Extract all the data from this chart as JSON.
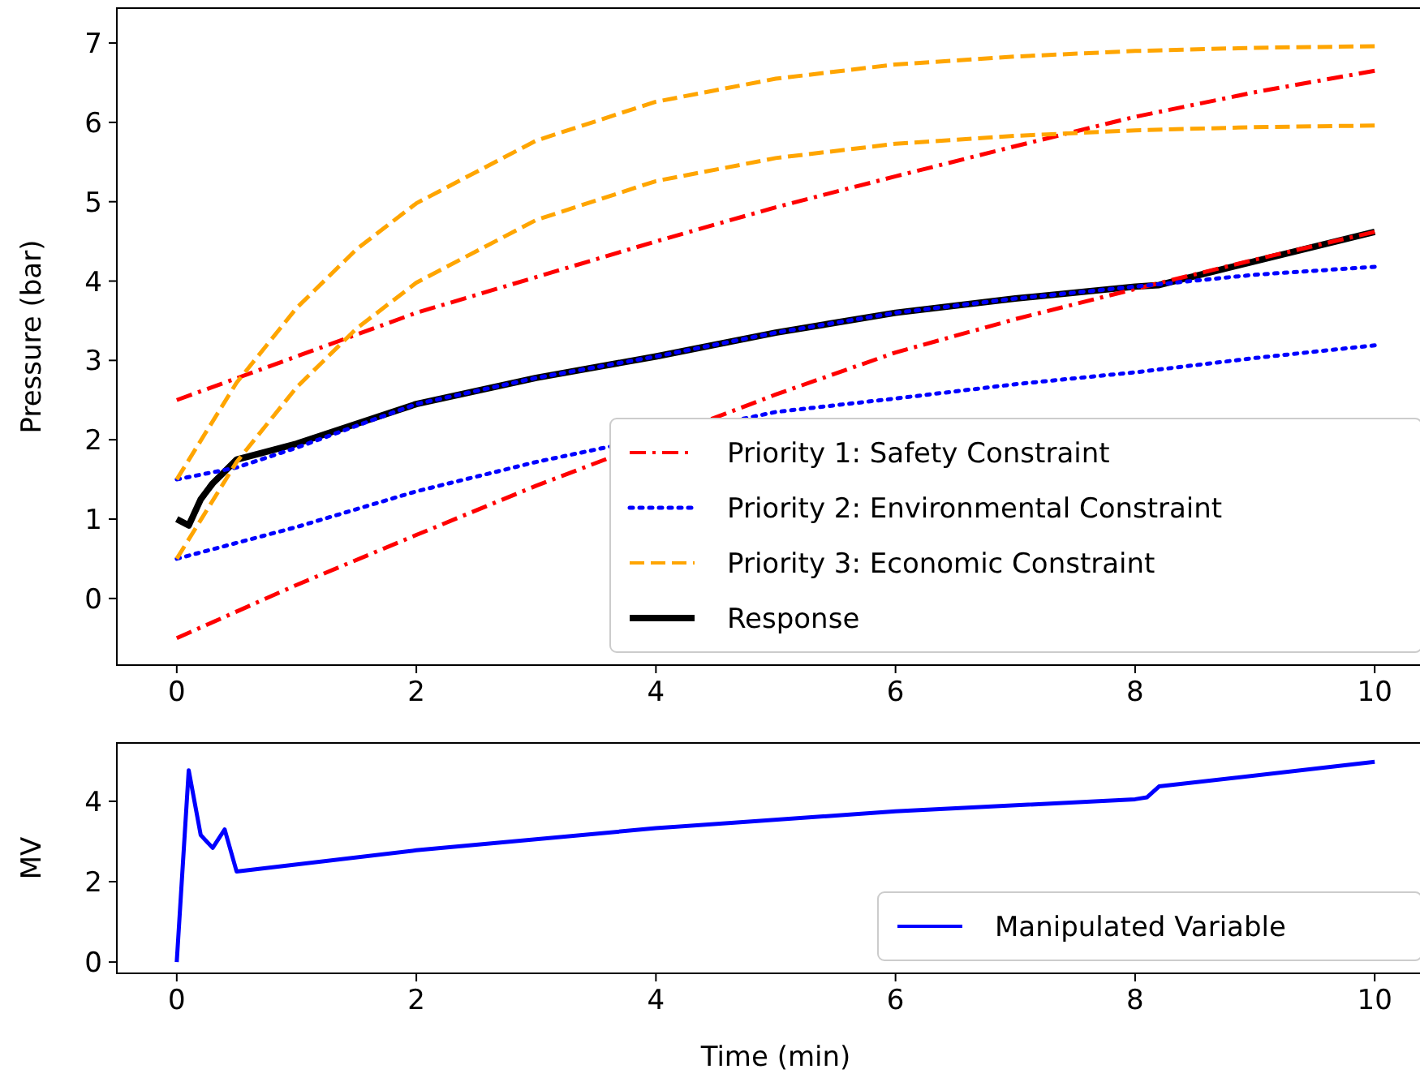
{
  "chart_data": [
    {
      "type": "line",
      "ylabel": "Pressure (bar)",
      "xlim": [
        -0.5,
        10.5
      ],
      "ylim": [
        -0.84,
        7.44
      ],
      "xticks": [
        0,
        2,
        4,
        6,
        8,
        10
      ],
      "yticks": [
        0,
        1,
        2,
        3,
        4,
        5,
        6,
        7
      ],
      "legend": "bottom right",
      "grid": false,
      "series": [
        {
          "name": "Priority 1: Safety Constraint",
          "color": "#ff0000",
          "line_style": "dashdot",
          "x": [
            0,
            1,
            2,
            3,
            4,
            5,
            6,
            7,
            8,
            9,
            10
          ],
          "values": [
            2.5,
            3.05,
            3.6,
            4.05,
            4.5,
            4.93,
            5.32,
            5.7,
            6.07,
            6.38,
            6.65
          ]
        },
        {
          "color": "#ff0000",
          "line_style": "dashdot",
          "x": [
            0,
            1,
            2,
            3,
            5,
            6,
            7,
            8,
            9,
            10
          ],
          "values": [
            -0.5,
            0.17,
            0.8,
            1.42,
            2.57,
            3.1,
            3.52,
            3.9,
            4.27,
            4.62
          ]
        },
        {
          "name": "Priority 2: Environmental Constraint",
          "color": "#0000ff",
          "line_style": "dotted",
          "x": [
            0,
            0.5,
            1,
            2,
            3,
            4,
            5,
            6,
            7,
            8,
            9,
            10
          ],
          "values": [
            1.5,
            1.65,
            1.9,
            2.45,
            2.78,
            3.05,
            3.35,
            3.6,
            3.78,
            3.93,
            4.08,
            4.18
          ]
        },
        {
          "color": "#0000ff",
          "line_style": "dotted",
          "x": [
            0,
            1,
            2,
            3,
            5,
            6,
            7,
            8,
            9,
            10
          ],
          "values": [
            0.5,
            0.9,
            1.35,
            1.72,
            2.35,
            2.52,
            2.7,
            2.85,
            3.03,
            3.19
          ]
        },
        {
          "name": "Priority 3: Economic Constraint",
          "color": "#ffa500",
          "line_style": "dashed",
          "x": [
            0,
            0.5,
            1,
            1.5,
            2,
            3,
            4,
            5,
            6,
            7,
            8,
            9,
            10
          ],
          "values": [
            1.5,
            2.72,
            3.66,
            4.4,
            4.98,
            5.77,
            6.26,
            6.55,
            6.73,
            6.83,
            6.9,
            6.94,
            6.96
          ]
        },
        {
          "color": "#ffa500",
          "line_style": "dashed",
          "x": [
            0,
            0.5,
            1,
            1.5,
            2,
            3,
            4,
            5,
            6,
            7,
            8,
            9,
            10
          ],
          "values": [
            0.5,
            1.72,
            2.66,
            3.4,
            3.98,
            4.77,
            5.26,
            5.55,
            5.73,
            5.83,
            5.9,
            5.94,
            5.96
          ]
        },
        {
          "name": "Response",
          "color": "#000000",
          "line_style": "solid",
          "x": [
            0,
            0.1,
            0.2,
            0.3,
            0.4,
            0.5,
            1,
            2,
            3,
            4,
            5,
            6,
            7,
            8,
            8.2,
            9,
            10
          ],
          "values": [
            1.0,
            0.92,
            1.25,
            1.45,
            1.6,
            1.75,
            1.95,
            2.45,
            2.78,
            3.05,
            3.35,
            3.6,
            3.78,
            3.93,
            3.95,
            4.25,
            4.62
          ]
        }
      ]
    },
    {
      "type": "line",
      "xlabel": "Time (min)",
      "ylabel": "MV",
      "xlim": [
        -0.5,
        10.5
      ],
      "ylim": [
        -0.28,
        5.45
      ],
      "xticks": [
        0,
        2,
        4,
        6,
        8,
        10
      ],
      "yticks": [
        0,
        2,
        4
      ],
      "legend": "bottom right",
      "grid": false,
      "series": [
        {
          "name": "Manipulated Variable",
          "color": "#0000ff",
          "line_style": "solid",
          "x": [
            0,
            0.1,
            0.2,
            0.3,
            0.4,
            0.5,
            2,
            4,
            6,
            8,
            8.1,
            8.2,
            10
          ],
          "values": [
            0,
            4.77,
            3.16,
            2.84,
            3.3,
            2.25,
            2.78,
            3.33,
            3.75,
            4.05,
            4.1,
            4.37,
            4.98
          ]
        }
      ]
    }
  ]
}
